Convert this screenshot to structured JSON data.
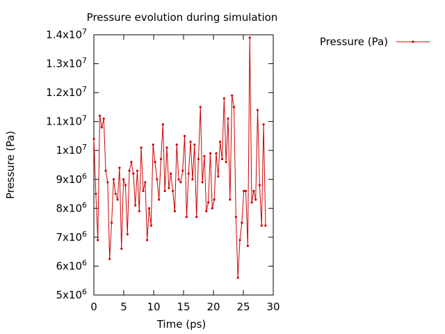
{
  "chart_data": {
    "type": "line",
    "title": "Pressure evolution during simulation",
    "x_label": "Time (ps)",
    "y_label": "Pressure (Pa)",
    "legend": "top-right",
    "x": [
      0,
      0.33,
      0.66,
      0.99,
      1.32,
      1.65,
      1.98,
      2.31,
      2.64,
      2.97,
      3.3,
      3.63,
      3.96,
      4.29,
      4.62,
      4.95,
      5.28,
      5.61,
      5.94,
      6.27,
      6.6,
      6.93,
      7.26,
      7.59,
      7.92,
      8.25,
      8.58,
      8.91,
      9.24,
      9.57,
      9.9,
      10.23,
      10.56,
      10.89,
      11.22,
      11.55,
      11.88,
      12.21,
      12.54,
      12.87,
      13.2,
      13.53,
      13.86,
      14.19,
      14.52,
      14.85,
      15.18,
      15.51,
      15.84,
      16.17,
      16.5,
      16.83,
      17.16,
      17.49,
      17.82,
      18.15,
      18.48,
      18.81,
      19.14,
      19.47,
      19.8,
      20.13,
      20.46,
      20.79,
      21.12,
      21.45,
      21.78,
      22.11,
      22.44,
      22.77,
      23.1,
      23.43,
      23.76,
      24.09,
      24.42,
      24.75,
      25.08,
      25.41,
      25.74,
      26.07,
      26.4,
      26.73,
      27.06,
      27.39,
      27.72,
      28.05,
      28.38,
      28.71
    ],
    "series": [
      {
        "name": "Pressure (Pa)",
        "color": "#cc0000",
        "values": [
          10400000,
          8500000,
          6900000,
          11200000,
          10800000,
          11100000,
          9300000,
          8900000,
          6250000,
          7500000,
          9000000,
          8500000,
          8300000,
          9400000,
          6600000,
          9000000,
          8800000,
          7100000,
          9300000,
          9600000,
          9200000,
          8100000,
          9300000,
          7900000,
          10100000,
          8600000,
          8900000,
          6900000,
          8000000,
          7400000,
          10200000,
          9600000,
          9000000,
          8300000,
          9700000,
          10900000,
          8600000,
          10100000,
          8700000,
          9200000,
          8600000,
          7900000,
          10200000,
          9000000,
          8900000,
          9300000,
          10500000,
          7700000,
          9200000,
          10300000,
          9000000,
          10200000,
          7700000,
          9700000,
          11500000,
          8900000,
          9800000,
          7900000,
          8200000,
          9900000,
          8000000,
          8300000,
          9900000,
          9100000,
          10300000,
          9700000,
          11800000,
          9600000,
          11100000,
          8300000,
          11900000,
          11500000,
          7700000,
          5600000,
          6900000,
          7500000,
          8600000,
          8600000,
          6700000,
          13900000,
          8200000,
          8600000,
          8300000,
          11400000,
          8800000,
          7400000,
          10900000,
          7400000
        ]
      }
    ],
    "xlim": [
      0,
      30
    ],
    "xticks": [
      0,
      5,
      10,
      15,
      20,
      25,
      30
    ],
    "ylim": [
      5000000,
      14000000
    ],
    "yticks": [
      {
        "value": 5000000,
        "label": "5x10",
        "exponent": "6"
      },
      {
        "value": 6000000,
        "label": "6x10",
        "exponent": "6"
      },
      {
        "value": 7000000,
        "label": "7x10",
        "exponent": "6"
      },
      {
        "value": 8000000,
        "label": "8x10",
        "exponent": "6"
      },
      {
        "value": 9000000,
        "label": "9x10",
        "exponent": "6"
      },
      {
        "value": 10000000,
        "label": "1x10",
        "exponent": "7"
      },
      {
        "value": 11000000,
        "label": "1.1x10",
        "exponent": "7"
      },
      {
        "value": 12000000,
        "label": "1.2x10",
        "exponent": "7"
      },
      {
        "value": 13000000,
        "label": "1.3x10",
        "exponent": "7"
      },
      {
        "value": 14000000,
        "label": "1.4x10",
        "exponent": "7"
      }
    ]
  }
}
